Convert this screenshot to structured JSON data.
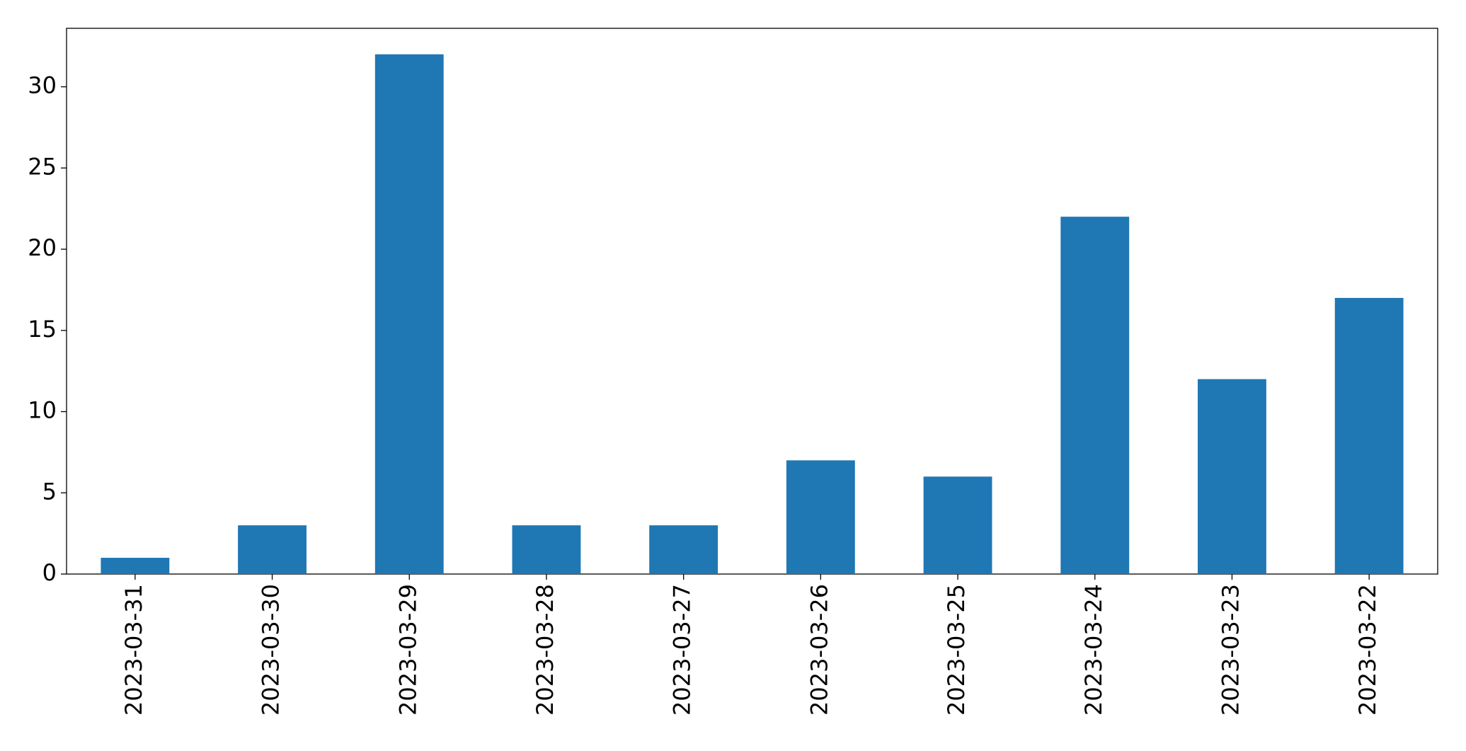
{
  "chart_data": {
    "type": "bar",
    "categories": [
      "2023-03-31",
      "2023-03-30",
      "2023-03-29",
      "2023-03-28",
      "2023-03-27",
      "2023-03-26",
      "2023-03-25",
      "2023-03-24",
      "2023-03-23",
      "2023-03-22"
    ],
    "values": [
      1,
      3,
      32,
      3,
      3,
      7,
      6,
      22,
      12,
      17
    ],
    "color": "#1f77b4",
    "ylim": [
      0,
      33.6
    ],
    "yticks": [
      0,
      5,
      10,
      15,
      20,
      25,
      30
    ],
    "grid": false
  }
}
